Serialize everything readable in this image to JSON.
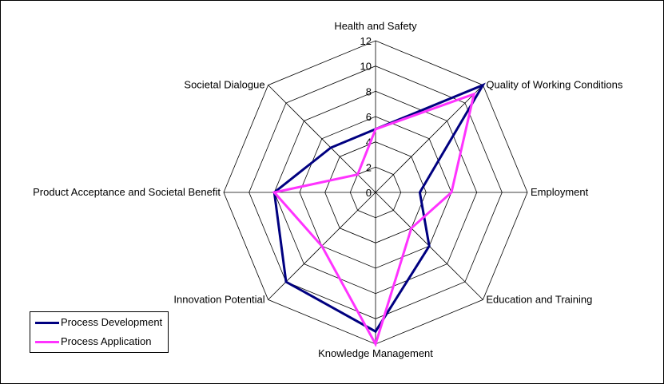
{
  "chart_data": {
    "type": "radar",
    "title": "",
    "axes": [
      "Health and Safety",
      "Quality of Working Conditions",
      "Employment",
      "Education and Training",
      "Knowledge Management",
      "Innovation Potential",
      "Product Acceptance and Societal Benefit",
      "Societal Dialogue"
    ],
    "tick_values": [
      0,
      2,
      4,
      6,
      8,
      10,
      12
    ],
    "range": [
      0,
      12
    ],
    "grid": true,
    "legend_position": "bottom-left",
    "series": [
      {
        "name": "Process Development",
        "color": "#000080",
        "values": [
          5,
          12,
          3.5,
          6,
          11,
          10,
          8,
          5
        ]
      },
      {
        "name": "Process Application",
        "color": "#FF33FF",
        "values": [
          5,
          11,
          6,
          4,
          12,
          6,
          8,
          2
        ]
      }
    ]
  }
}
